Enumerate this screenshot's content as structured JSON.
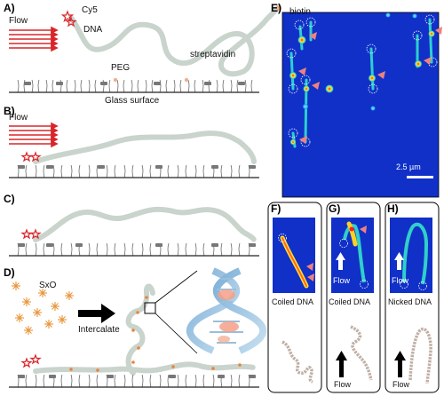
{
  "panels": {
    "a": {
      "label": "A)",
      "flow": "Flow",
      "cy5": "Cy5",
      "dna": "DNA",
      "biotin": "biotin",
      "peg": "PEG",
      "streptavidin": "streptavidin",
      "surface": "Glass surface"
    },
    "b": {
      "label": "B)",
      "flow": "Flow"
    },
    "c": {
      "label": "C)"
    },
    "d": {
      "label": "D)",
      "dye": "SxO",
      "intercalate": "Intercalate"
    },
    "e": {
      "label": "E)",
      "scale_bar": "2.5 µm"
    },
    "f": {
      "label": "F)",
      "caption": "Coiled DNA"
    },
    "g": {
      "label": "G)",
      "caption": "Coiled DNA",
      "flow_image": "Flow",
      "flow_schematic": "Flow"
    },
    "h": {
      "label": "H)",
      "caption": "Nicked DNA",
      "flow_image": "Flow",
      "flow_schematic": "Flow"
    }
  },
  "colors": {
    "dna": "#c9d4cc",
    "dye": "#e8853a",
    "arrow_red": "#d8262a",
    "marker_pink": "#f08080",
    "image_bg": "#1030c8",
    "biotin": "#f0b090"
  }
}
